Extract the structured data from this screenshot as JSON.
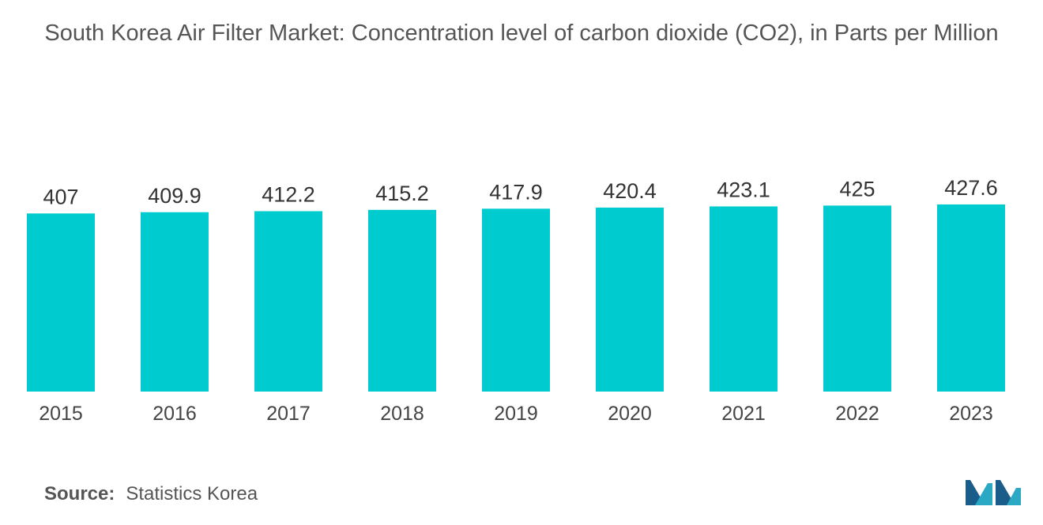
{
  "chart_data": {
    "type": "bar",
    "title": "South Korea Air Filter Market: Concentration level of carbon dioxide (CO2), in Parts per Million",
    "categories": [
      "2015",
      "2016",
      "2017",
      "2018",
      "2019",
      "2020",
      "2021",
      "2022",
      "2023"
    ],
    "values": [
      407,
      409.9,
      412.2,
      415.2,
      417.9,
      420.4,
      423.1,
      425,
      427.6
    ],
    "value_labels": [
      "407",
      "409.9",
      "412.2",
      "415.2",
      "417.9",
      "420.4",
      "423.1",
      "425",
      "427.6"
    ],
    "xlabel": "",
    "ylabel": "",
    "ylim": [
      0,
      460
    ],
    "grid": false,
    "legend": "none",
    "bar_color": "#00CCCF"
  },
  "source": {
    "label": "Source:",
    "text": "Statistics Korea"
  },
  "brand": {
    "logo_icon": "mordor-intelligence-logo-icon",
    "colors": [
      "#1A5C8A",
      "#2AA8C4"
    ]
  }
}
